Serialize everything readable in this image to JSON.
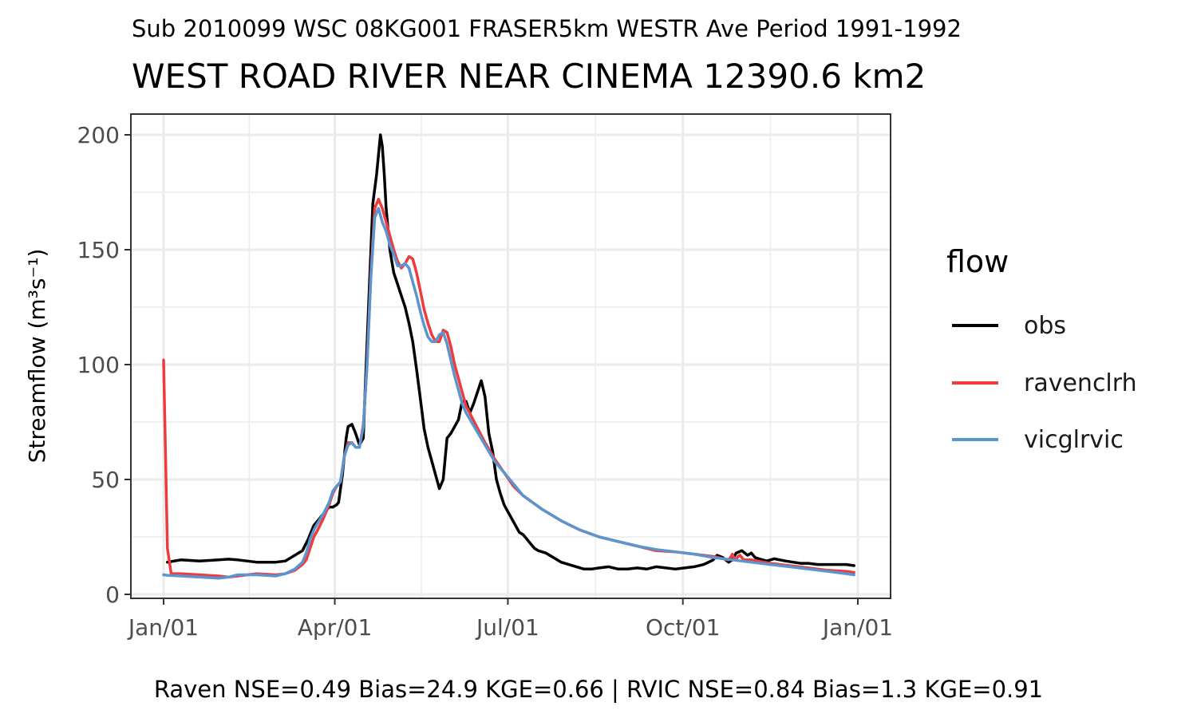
{
  "chart_data": {
    "type": "line",
    "subtitle": "Sub 2010099 WSC 08KG001 FRASER5km WESTR Ave Period 1991-1992",
    "title": "WEST ROAD RIVER NEAR CINEMA 12390.6 km2",
    "ylabel": "Streamflow (m³s⁻¹)",
    "xlabel": "",
    "caption": "Raven NSE=0.49 Bias=24.9 KGE=0.66 | RVIC NSE=0.84 Bias=1.3 KGE=0.91",
    "xlim": [
      1,
      365
    ],
    "ylim": [
      -2,
      209
    ],
    "x_ticks": [
      {
        "day": 1,
        "label": "Jan/01"
      },
      {
        "day": 91,
        "label": "Apr/01"
      },
      {
        "day": 182,
        "label": "Jul/01"
      },
      {
        "day": 274,
        "label": "Oct/01"
      },
      {
        "day": 366,
        "label": "Jan/01"
      }
    ],
    "y_ticks": [
      0,
      50,
      100,
      150,
      200
    ],
    "x_minor": [
      46,
      136.5,
      228,
      320
    ],
    "y_minor": [
      25,
      75,
      125,
      175
    ],
    "grid": true,
    "legend": {
      "title": "flow",
      "position": "right"
    },
    "series": [
      {
        "name": "obs",
        "color": "#000000",
        "x": [
          3,
          10,
          20,
          30,
          35,
          40,
          50,
          60,
          65,
          70,
          74,
          77,
          80,
          83,
          84,
          86,
          88,
          90,
          92,
          93,
          95,
          97,
          98,
          100,
          102,
          104,
          106,
          107,
          109,
          111,
          113,
          115,
          116,
          117,
          118,
          120,
          122,
          124,
          126,
          128,
          130,
          132,
          134,
          136,
          138,
          140,
          142,
          144,
          146,
          148,
          150,
          152,
          154,
          156,
          158,
          160,
          162,
          164,
          166,
          168,
          170,
          172,
          174,
          176,
          178,
          180,
          182,
          184,
          186,
          188,
          190,
          192,
          194,
          196,
          198,
          202,
          206,
          210,
          214,
          218,
          222,
          226,
          230,
          235,
          240,
          245,
          250,
          255,
          260,
          270,
          280,
          285,
          290,
          292,
          295,
          298,
          300,
          302,
          305,
          308,
          310,
          312,
          314,
          316,
          318,
          320,
          322,
          325,
          328,
          332,
          336,
          340,
          345,
          350,
          355,
          360,
          364
        ],
        "y": [
          14,
          15,
          14.5,
          15,
          15.3,
          15,
          14,
          14,
          14.5,
          17,
          19,
          24,
          30,
          33,
          34,
          36,
          38,
          38,
          39,
          40,
          52,
          68,
          73,
          74,
          70,
          65,
          68,
          90,
          130,
          170,
          183,
          200,
          195,
          183,
          168,
          150,
          140,
          135,
          130,
          125,
          118,
          110,
          98,
          85,
          72,
          64,
          58,
          52,
          46,
          50,
          68,
          70,
          73,
          76,
          84,
          84,
          79,
          83,
          88,
          93,
          86,
          70,
          62,
          50,
          44,
          39,
          36,
          33,
          30,
          27,
          26,
          24,
          22,
          20,
          19,
          18,
          16,
          14,
          13,
          12,
          11,
          11,
          11.5,
          12,
          11,
          11,
          11.5,
          11,
          12,
          11,
          12,
          13,
          15,
          17,
          16,
          14,
          15,
          18,
          19,
          17,
          18,
          16,
          15.5,
          15,
          14.5,
          15,
          15.5,
          15,
          14.5,
          14,
          13.5,
          13.5,
          13,
          13,
          13,
          13,
          12.5
        ]
      },
      {
        "name": "ravenclrh",
        "color": "#ef3b3b",
        "x": [
          1,
          3,
          5,
          10,
          20,
          30,
          35,
          40,
          50,
          60,
          65,
          70,
          74,
          76,
          78,
          80,
          82,
          85,
          88,
          90,
          92,
          94,
          96,
          98,
          100,
          102,
          104,
          106,
          108,
          110,
          112,
          114,
          116,
          118,
          120,
          122,
          124,
          126,
          128,
          130,
          132,
          134,
          136,
          138,
          140,
          142,
          144,
          146,
          148,
          150,
          152,
          154,
          156,
          158,
          160,
          165,
          170,
          175,
          180,
          185,
          190,
          195,
          200,
          210,
          220,
          230,
          240,
          250,
          260,
          270,
          280,
          290,
          298,
          299,
          300,
          301,
          302,
          303,
          304,
          305,
          306,
          310,
          320,
          330,
          340,
          350,
          360,
          364
        ],
        "y": [
          102,
          20,
          9,
          9,
          8.5,
          8,
          7.5,
          8,
          9,
          8.5,
          9,
          10.5,
          13,
          15,
          20,
          25,
          28,
          33,
          39,
          44,
          47,
          49,
          60,
          66,
          66,
          64,
          64,
          74,
          100,
          140,
          168,
          172,
          168,
          162,
          156,
          150,
          145,
          142,
          144,
          147,
          146,
          140,
          132,
          124,
          118,
          113,
          110,
          110,
          115,
          114,
          108,
          100,
          94,
          88,
          82,
          74,
          66,
          59,
          53,
          47,
          43,
          40,
          37,
          32,
          28,
          25,
          23,
          21,
          19,
          18.5,
          17.5,
          16.5,
          15,
          16,
          17.5,
          15.5,
          15,
          16.5,
          17,
          16,
          15,
          15,
          13.5,
          12.5,
          11.5,
          10.5,
          10,
          9.5
        ]
      },
      {
        "name": "vicglrvic",
        "color": "#5b95cf",
        "x": [
          1,
          3,
          10,
          20,
          30,
          35,
          40,
          50,
          60,
          65,
          70,
          74,
          76,
          78,
          80,
          82,
          85,
          88,
          90,
          92,
          94,
          96,
          98,
          100,
          102,
          104,
          106,
          108,
          110,
          112,
          114,
          116,
          118,
          120,
          122,
          124,
          126,
          128,
          130,
          132,
          134,
          136,
          138,
          140,
          142,
          144,
          146,
          148,
          150,
          152,
          154,
          156,
          158,
          160,
          165,
          170,
          175,
          180,
          185,
          190,
          195,
          200,
          210,
          220,
          230,
          240,
          250,
          260,
          270,
          280,
          290,
          300,
          310,
          320,
          330,
          340,
          350,
          360,
          364
        ],
        "y": [
          8.5,
          8.3,
          8,
          7.5,
          7,
          7.5,
          8.5,
          8.5,
          8,
          9,
          11,
          14,
          18,
          24,
          28,
          31,
          35,
          40,
          45,
          47,
          49,
          60,
          65,
          66,
          64,
          64,
          73,
          100,
          138,
          164,
          168,
          162,
          158,
          152,
          148,
          143,
          143,
          144,
          142,
          136,
          130,
          123,
          117,
          112,
          110,
          110,
          113,
          114,
          109,
          102,
          95,
          89,
          83,
          79,
          72,
          65,
          58,
          53,
          48,
          43,
          40,
          37,
          32,
          28,
          25,
          23,
          21,
          19.5,
          18.5,
          17.5,
          16,
          15,
          14,
          13,
          12,
          11,
          10,
          9,
          8.5
        ]
      }
    ]
  }
}
